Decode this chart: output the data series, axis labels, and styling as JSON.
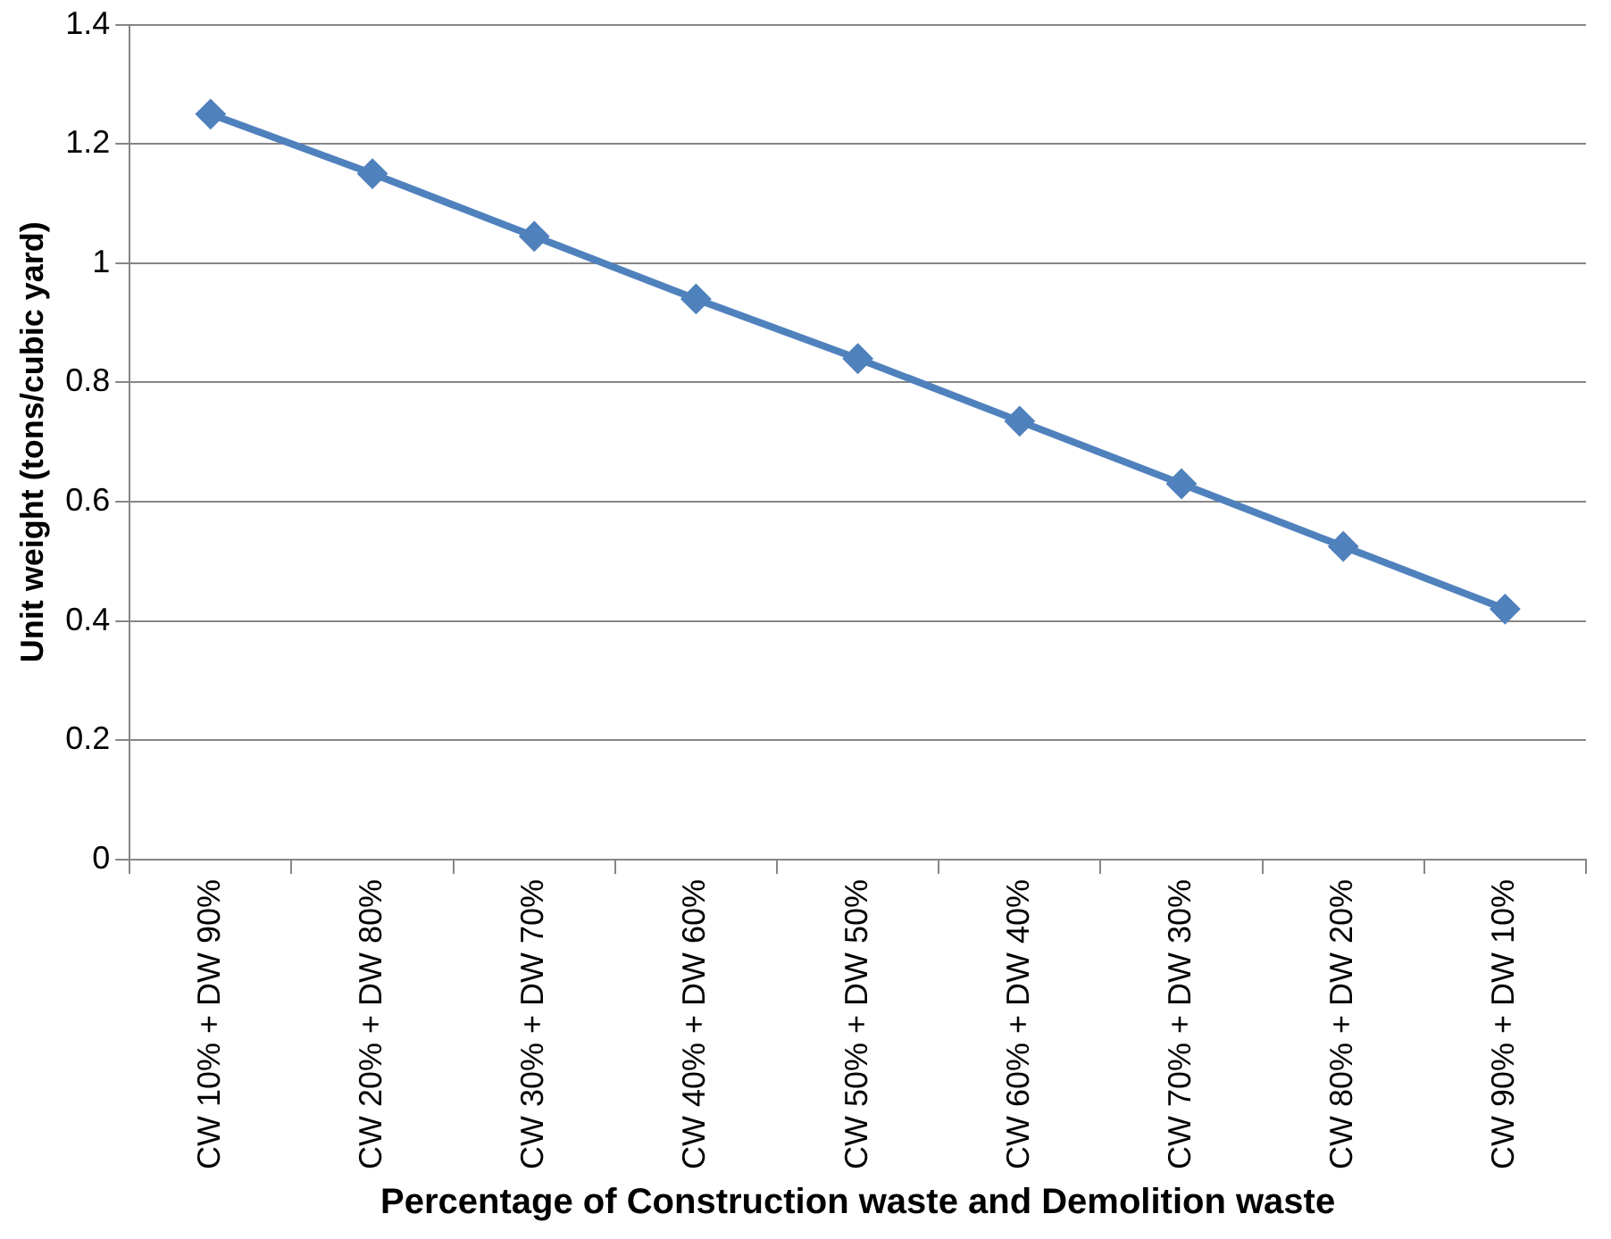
{
  "chart_data": {
    "type": "line",
    "xlabel": "Percentage of Construction waste and Demolition waste",
    "ylabel": "Unit weight (tons/cubic yard)",
    "categories": [
      "CW 10% + DW 90%",
      "CW 20% + DW 80%",
      "CW 30% + DW 70%",
      "CW 40% + DW 60%",
      "CW 50% + DW 50%",
      "CW 60% + DW 40%",
      "CW 70% + DW 30%",
      "CW 80% + DW 20%",
      "CW 90% + DW 10%"
    ],
    "series": [
      {
        "color": "#4f81bd",
        "values": [
          1.25,
          1.15,
          1.045,
          0.94,
          0.84,
          0.735,
          0.63,
          0.525,
          0.42
        ]
      }
    ],
    "ylim": [
      0,
      1.4
    ],
    "yticks": [
      0,
      0.2,
      0.4,
      0.6,
      0.8,
      1,
      1.2,
      1.4
    ],
    "grid": "y",
    "legend": false,
    "marker": "diamond",
    "line_style": "solid"
  }
}
